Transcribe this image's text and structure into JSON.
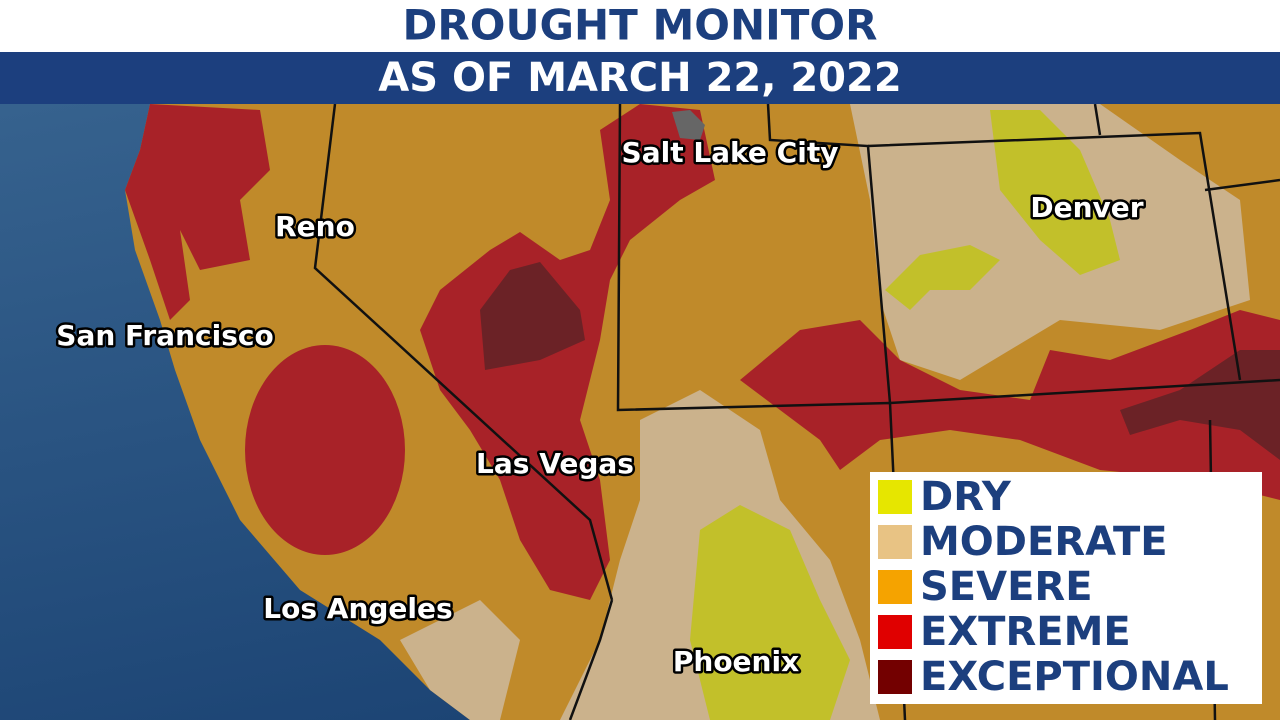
{
  "header": {
    "title": "DROUGHT MONITOR",
    "subtitle": "AS OF MARCH 22, 2022"
  },
  "cities": [
    {
      "label": "Salt Lake City"
    },
    {
      "label": "Denver"
    },
    {
      "label": "Reno"
    },
    {
      "label": "San Francisco"
    },
    {
      "label": "Las Vegas"
    },
    {
      "label": "Los Angeles"
    },
    {
      "label": "Phoenix"
    }
  ],
  "legend": [
    {
      "label": "DRY",
      "color": "#e6e600"
    },
    {
      "label": "MODERATE",
      "color": "#e8c384"
    },
    {
      "label": "SEVERE",
      "color": "#f5a300"
    },
    {
      "label": "EXTREME",
      "color": "#e00000"
    },
    {
      "label": "EXCEPTIONAL",
      "color": "#730000"
    }
  ]
}
